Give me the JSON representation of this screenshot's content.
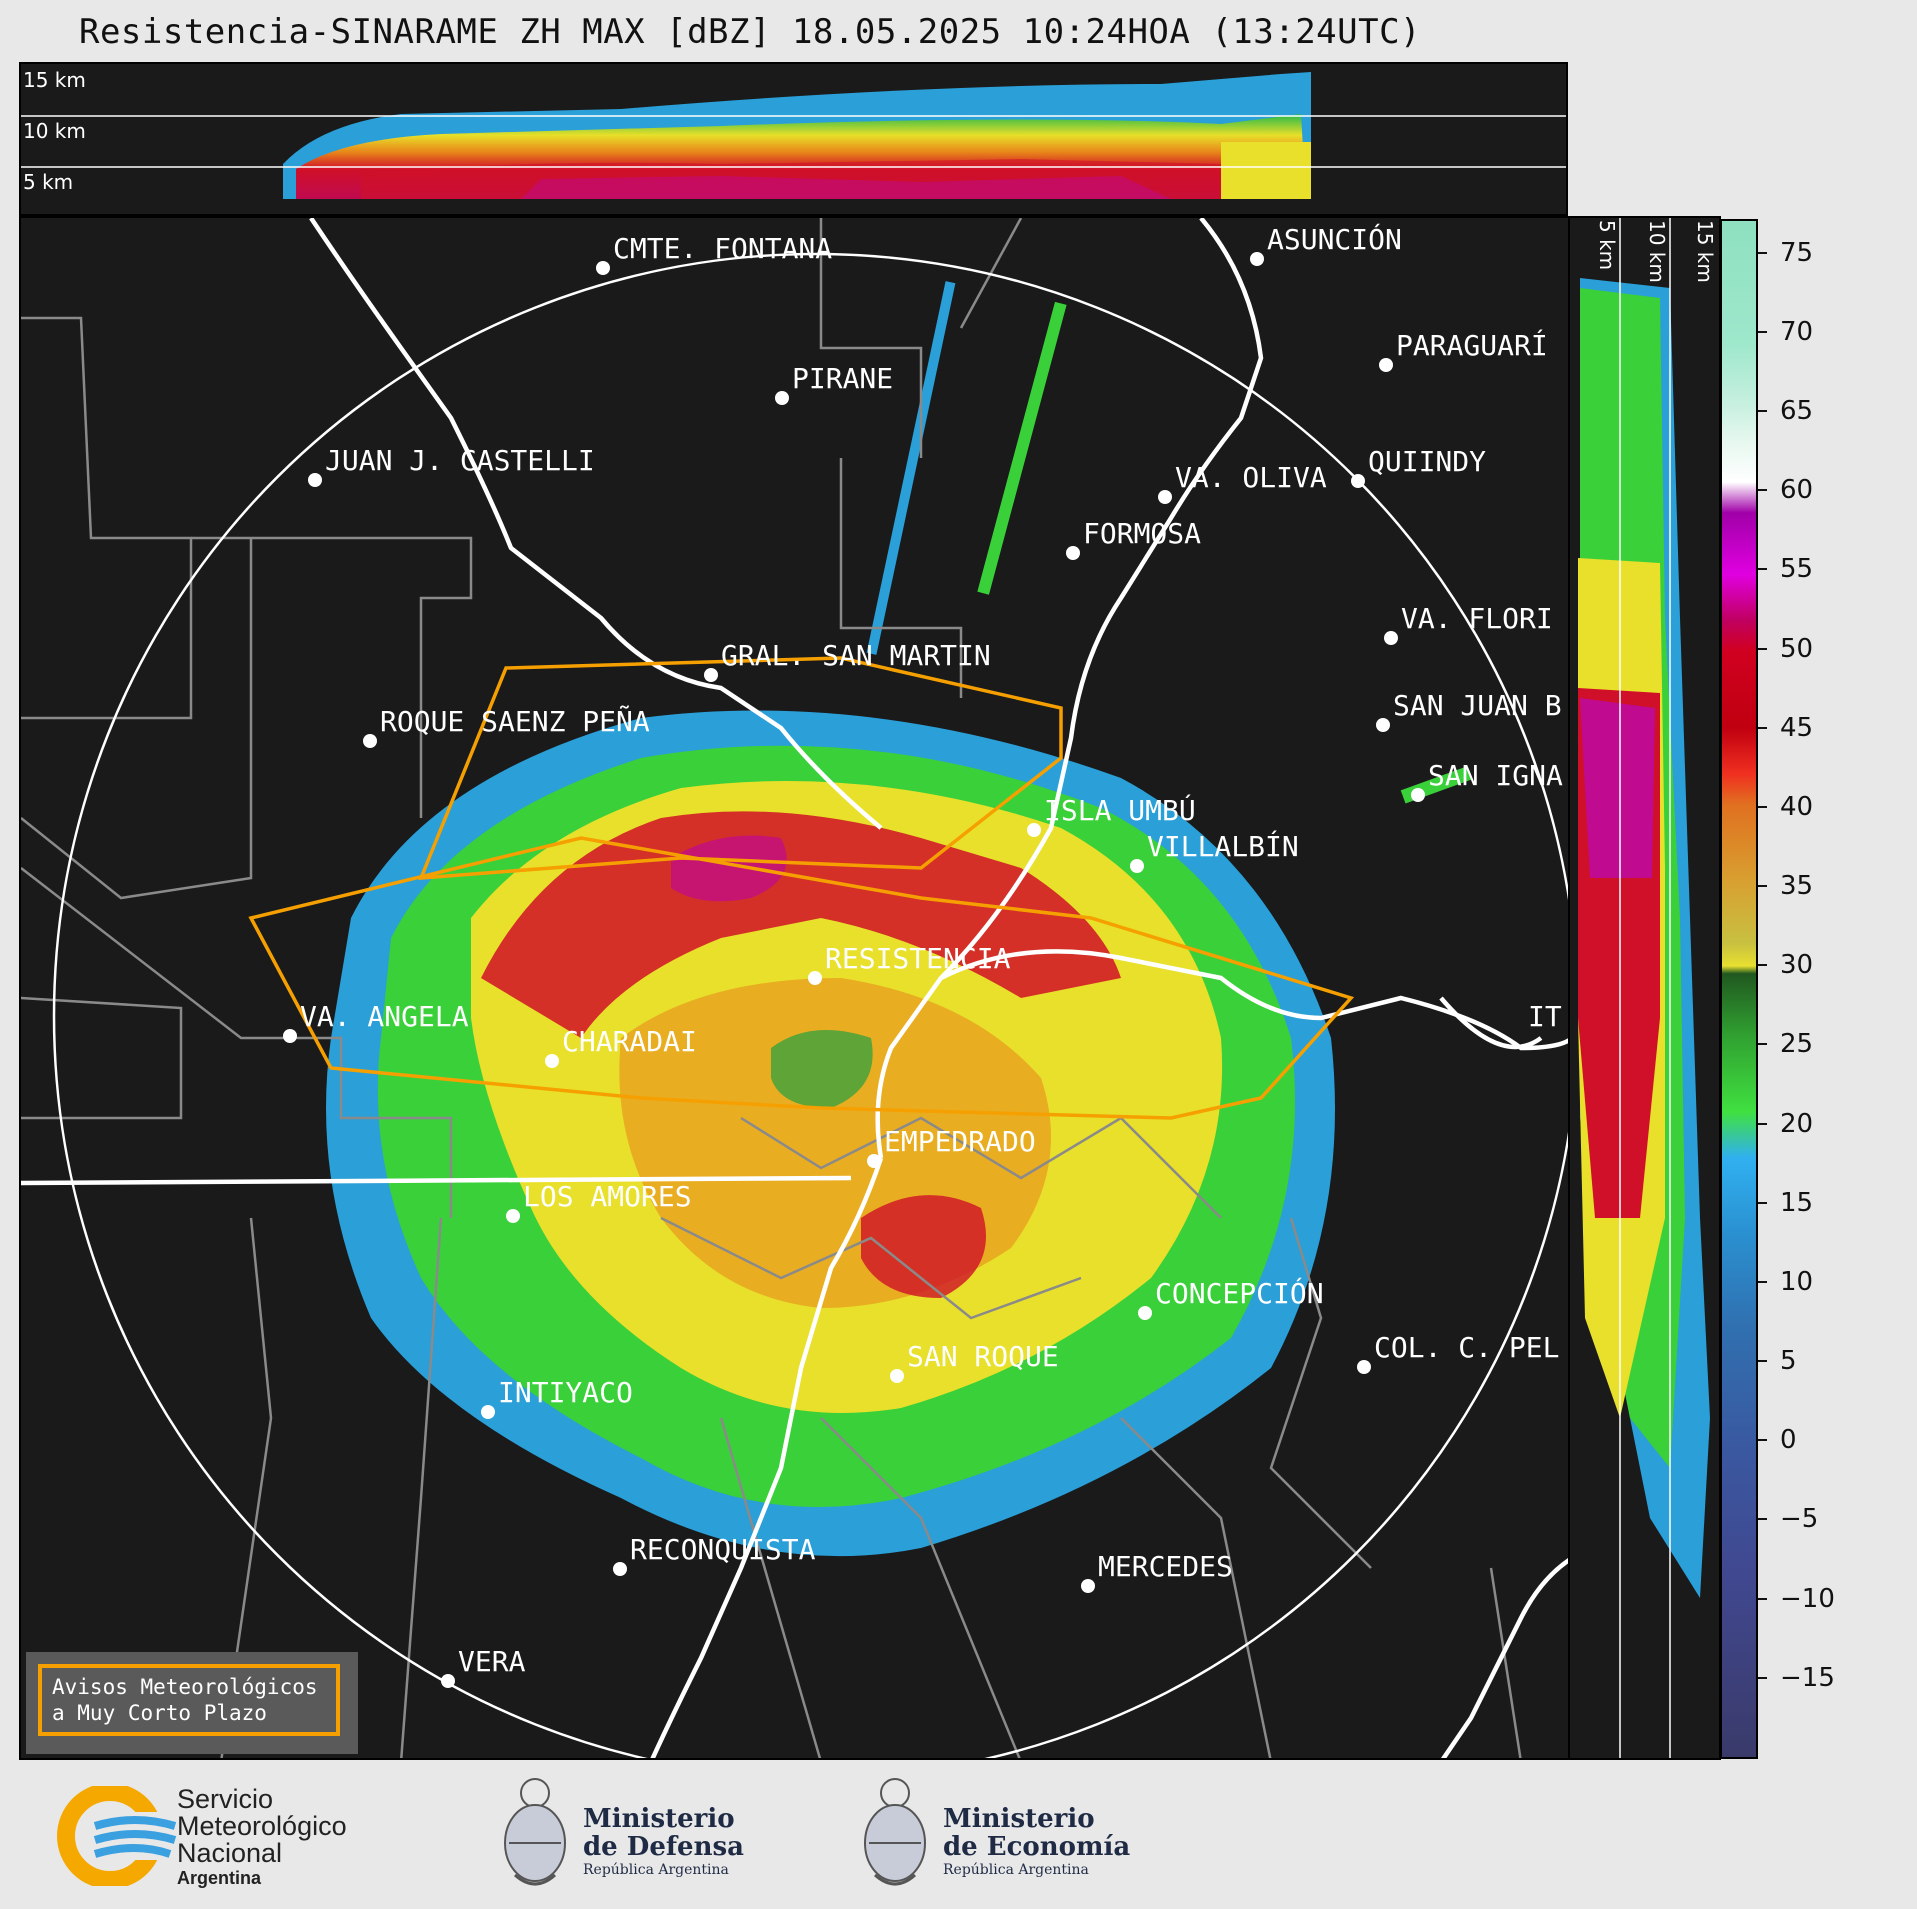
{
  "title": "Resistencia-SINARAME ZH MAX [dBZ] 18.05.2025 10:24HOA (13:24UTC)",
  "top_panel": {
    "altitude_labels": [
      "15 km",
      "10 km",
      "5 km"
    ]
  },
  "right_panel": {
    "altitude_labels": [
      "5 km",
      "10 km",
      "15 km"
    ]
  },
  "colorbar": {
    "unit": "dBZ",
    "ticks": [
      "75",
      "70",
      "65",
      "60",
      "55",
      "50",
      "45",
      "40",
      "35",
      "30",
      "25",
      "20",
      "15",
      "10",
      "5",
      "0",
      "−5",
      "−10",
      "−15"
    ],
    "min": -20,
    "max": 77
  },
  "cities": [
    {
      "name": "CMTE. FONTANA"
    },
    {
      "name": "ASUNCIÓN"
    },
    {
      "name": "PARAGUARÍ"
    },
    {
      "name": "PIRANE"
    },
    {
      "name": "JUAN J. CASTELLI"
    },
    {
      "name": "VA. OLIVA"
    },
    {
      "name": "QUIINDY"
    },
    {
      "name": "FORMOSA"
    },
    {
      "name": "VA. FLORI"
    },
    {
      "name": "GRAL. SAN MARTIN"
    },
    {
      "name": "SAN JUAN B"
    },
    {
      "name": "ROQUE SAENZ PEÑA"
    },
    {
      "name": "SAN IGNA"
    },
    {
      "name": "ISLA UMBÚ"
    },
    {
      "name": "VILLALBÍN"
    },
    {
      "name": "RESISTENCIA"
    },
    {
      "name": "VA. ANGELA"
    },
    {
      "name": "CHARADAI"
    },
    {
      "name": "IT"
    },
    {
      "name": "EMPEDRADO"
    },
    {
      "name": "LOS AMORES"
    },
    {
      "name": "CONCEPCIÓN"
    },
    {
      "name": "COL. C. PEL"
    },
    {
      "name": "SAN ROQUE"
    },
    {
      "name": "INTIYACO"
    },
    {
      "name": "RECONQUISTA"
    },
    {
      "name": "MERCEDES"
    },
    {
      "name": "VERA"
    }
  ],
  "legend": {
    "line1": "Avisos Meteorológicos",
    "line2": "a Muy Corto Plazo"
  },
  "logos": {
    "smn": {
      "line1": "Servicio",
      "line2": "Meteorológico",
      "line3": "Nacional",
      "line4": "Argentina"
    },
    "defensa": {
      "line1": "Ministerio",
      "line2": "de Defensa",
      "line3": "República Argentina"
    },
    "economia": {
      "line1": "Ministerio",
      "line2": "de Economía",
      "line3": "República Argentina"
    }
  },
  "colors": {
    "warning": "#f5a000",
    "background": "#1a1a1a"
  }
}
